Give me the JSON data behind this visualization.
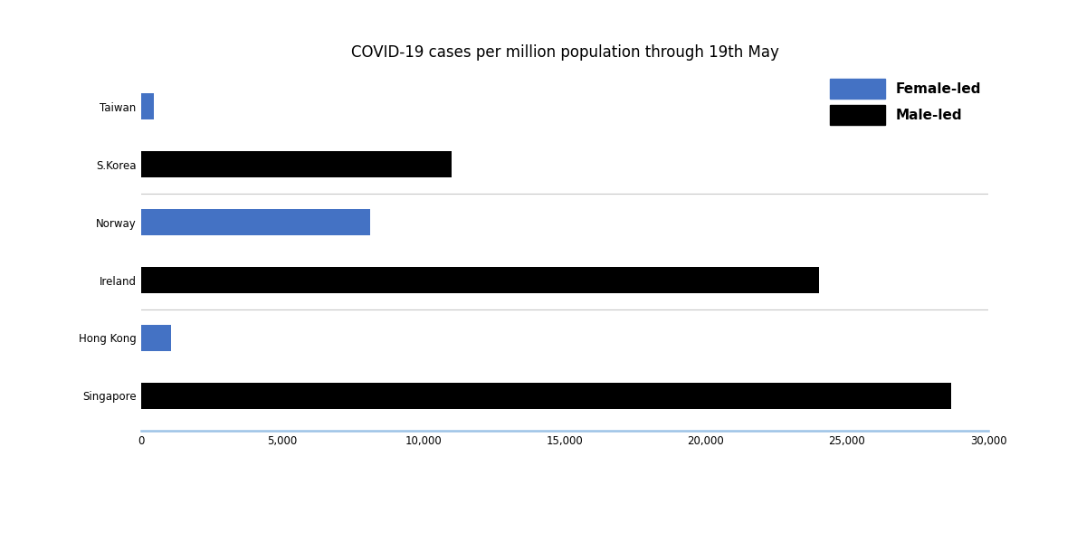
{
  "title": "COVID-19 cases per million population through 19th May",
  "categories": [
    "Singapore",
    "Hong Kong",
    "Ireland",
    "Norway",
    "S.Korea",
    "Taiwan"
  ],
  "values": [
    28700,
    1050,
    24000,
    8100,
    11000,
    440
  ],
  "colors": [
    "#000000",
    "#4472C4",
    "#000000",
    "#4472C4",
    "#000000",
    "#4472C4"
  ],
  "legend": {
    "Female-led": "#4472C4",
    "Male-led": "#000000"
  },
  "xlim": [
    0,
    30000
  ],
  "xticks": [
    0,
    5000,
    10000,
    15000,
    20000,
    25000,
    30000
  ],
  "xtick_labels": [
    "0",
    "5,000",
    "10,000",
    "15,000",
    "20,000",
    "25,000",
    "30,000"
  ],
  "bar_height": 0.45,
  "title_fontsize": 12,
  "label_fontsize": 8.5,
  "tick_fontsize": 8.5,
  "spine_color_bottom": "#9DC3E6",
  "separator_color": "#C8C8C8",
  "background_color": "#FFFFFF"
}
